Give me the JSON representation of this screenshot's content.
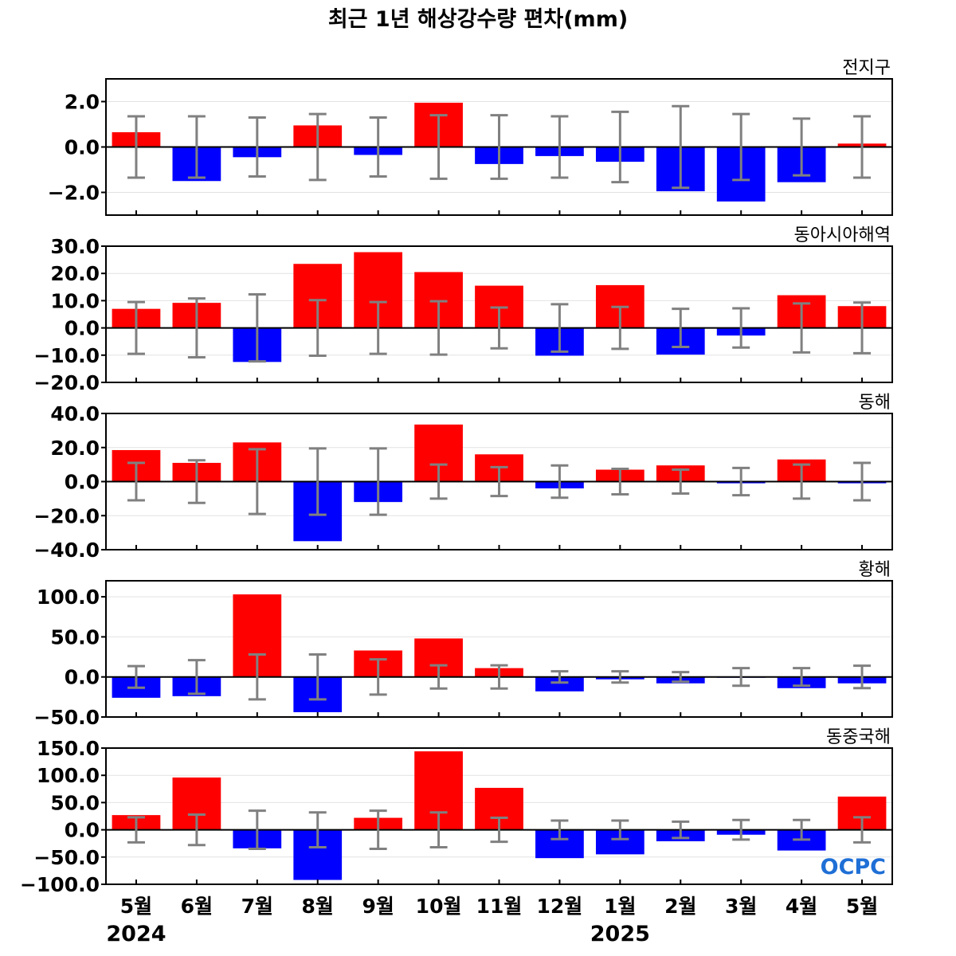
{
  "chart_data": {
    "type": "bar",
    "title": "최근 1년 해상강수량 편차(mm)",
    "categories": [
      "5월",
      "6월",
      "7월",
      "8월",
      "9월",
      "10월",
      "11월",
      "12월",
      "1월",
      "2월",
      "3월",
      "4월",
      "5월"
    ],
    "year_labels": [
      {
        "index": 0,
        "text": "2024"
      },
      {
        "index": 8,
        "text": "2025"
      }
    ],
    "positive_color": "#ff0000",
    "negative_color": "#0000ff",
    "error_bar_color": "#808080",
    "grid": true,
    "logo": "OCPC",
    "panels": [
      {
        "name": "전지구",
        "ylim": [
          -3.0,
          3.0
        ],
        "ticks": [
          -2.0,
          0.0,
          2.0
        ],
        "tick_labels": [
          "−2.0",
          "0.0",
          "2.0"
        ],
        "values": [
          0.65,
          -1.5,
          -0.45,
          0.95,
          -0.35,
          1.95,
          -0.75,
          -0.4,
          -0.65,
          -1.95,
          -2.4,
          -1.55,
          0.15
        ],
        "error": [
          1.35,
          1.35,
          1.3,
          1.45,
          1.3,
          1.4,
          1.4,
          1.35,
          1.55,
          1.8,
          1.45,
          1.25,
          1.35
        ]
      },
      {
        "name": "동아시아해역",
        "ylim": [
          -20.0,
          30.0
        ],
        "ticks": [
          -20.0,
          -10.0,
          0.0,
          10.0,
          20.0,
          30.0
        ],
        "tick_labels": [
          "−20.0",
          "−10.0",
          "0.0",
          "10.0",
          "20.0",
          "30.0"
        ],
        "values": [
          7,
          9.2,
          -12.5,
          23.5,
          27.8,
          20.5,
          15.5,
          -10.2,
          15.7,
          -9.8,
          -2.8,
          12,
          8
        ],
        "error": [
          9.5,
          10.8,
          12.3,
          10.2,
          9.5,
          9.8,
          7.5,
          8.7,
          7.7,
          7,
          7.2,
          9,
          9.3
        ]
      },
      {
        "name": "동해",
        "ylim": [
          -40.0,
          40.0
        ],
        "ticks": [
          -40.0,
          -20.0,
          0.0,
          20.0,
          40.0
        ],
        "tick_labels": [
          "−40.0",
          "−20.0",
          "0.0",
          "20.0",
          "40.0"
        ],
        "values": [
          18.5,
          11,
          23,
          -35,
          -12,
          33.5,
          16,
          -4,
          7,
          9.5,
          -1,
          13,
          -1
        ],
        "error": [
          11,
          12.5,
          19,
          19.5,
          19.5,
          10,
          8.5,
          9.5,
          7.5,
          7,
          8,
          10,
          11
        ]
      },
      {
        "name": "황해",
        "ylim": [
          -50.0,
          120.0
        ],
        "ticks": [
          -50.0,
          0.0,
          50.0,
          100.0
        ],
        "tick_labels": [
          "−50.0",
          "0.0",
          "50.0",
          "100.0"
        ],
        "values": [
          -26,
          -24,
          103,
          -44,
          33,
          48,
          11,
          -18,
          -3,
          -8,
          -1,
          -14,
          -8
        ],
        "error": [
          13.5,
          21,
          28,
          28,
          22,
          14.5,
          14.5,
          7,
          7,
          6,
          11,
          11,
          14
        ]
      },
      {
        "name": "동중국해",
        "ylim": [
          -100.0,
          150.0
        ],
        "ticks": [
          -100.0,
          -50.0,
          0.0,
          50.0,
          100.0,
          150.0
        ],
        "tick_labels": [
          "−100.0",
          "−50.0",
          "0.0",
          "50.0",
          "100.0",
          "150.0"
        ],
        "values": [
          27,
          96,
          -34,
          -92,
          22,
          144,
          77,
          -52,
          -45,
          -21,
          -9,
          -38,
          61
        ],
        "error": [
          23,
          28,
          35,
          32,
          35,
          32,
          22,
          17,
          17,
          15,
          18,
          18,
          23
        ]
      }
    ]
  }
}
